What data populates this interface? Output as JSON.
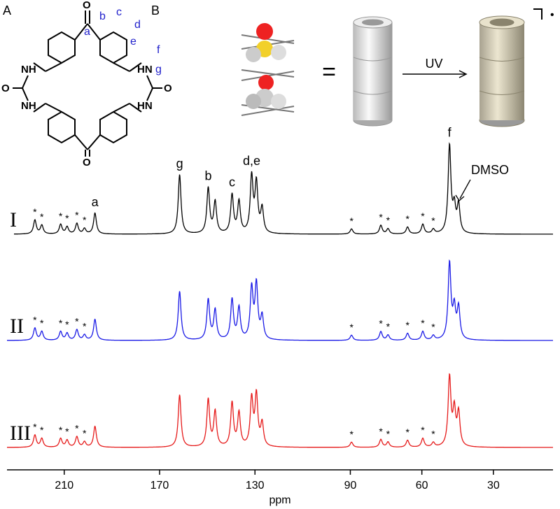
{
  "panel_a": {
    "label": "A",
    "atoms": {
      "nh": "NH",
      "hn": "HN",
      "o": "O"
    },
    "positions": [
      "a",
      "b",
      "c",
      "d",
      "e",
      "f",
      "g"
    ]
  },
  "panel_b": {
    "label": "B",
    "equals": "=",
    "arrow_label": "UV",
    "radical": "•"
  },
  "chart_data": {
    "type": "spectrum",
    "x_label": "ppm",
    "xlim": [
      234,
      5
    ],
    "xticks": [
      210,
      170,
      130,
      90,
      60,
      30
    ],
    "peak_ppm": [
      222.3,
      219.4,
      211.5,
      208.8,
      204.7,
      201.5,
      197.1,
      161.6,
      149.6,
      146.7,
      139.6,
      136.7,
      131.4,
      129.4,
      127.0,
      89.5,
      77.2,
      74.2,
      66.0,
      59.6,
      55.2,
      48.4,
      46.4,
      44.6
    ],
    "star_label": "*",
    "star_ppm": [
      222.3,
      219.4,
      211.5,
      208.8,
      204.7,
      201.5,
      89.5,
      77.2,
      74.2,
      66.0,
      59.6,
      55.2
    ],
    "peak_labels": [
      {
        "label": "a",
        "ppm": 197.1
      },
      {
        "label": "g",
        "ppm": 161.6
      },
      {
        "label": "b",
        "ppm": 149.6
      },
      {
        "label": "c",
        "ppm": 139.6
      },
      {
        "label": "d,e",
        "ppm": 131.4
      },
      {
        "label": "f",
        "ppm": 48.4
      }
    ],
    "solvent_label": "DMSO",
    "series": [
      {
        "name": "I",
        "color": "#000000",
        "heights": [
          16,
          10,
          11,
          8,
          12,
          6,
          24,
          68,
          52,
          36,
          44,
          36,
          64,
          56,
          28,
          6,
          10,
          6,
          8,
          11,
          5,
          100,
          28,
          32
        ]
      },
      {
        "name": "II",
        "color": "#1a1ae6",
        "heights": [
          14,
          10,
          10,
          8,
          12,
          6,
          24,
          56,
          46,
          34,
          46,
          36,
          58,
          62,
          26,
          6,
          10,
          6,
          8,
          10,
          5,
          87,
          34,
          36
        ]
      },
      {
        "name": "III",
        "color": "#e61a1a",
        "heights": [
          14,
          10,
          10,
          8,
          12,
          6,
          24,
          60,
          54,
          40,
          50,
          38,
          54,
          58,
          26,
          6,
          9,
          6,
          8,
          10,
          5,
          79,
          40,
          38
        ]
      }
    ]
  }
}
